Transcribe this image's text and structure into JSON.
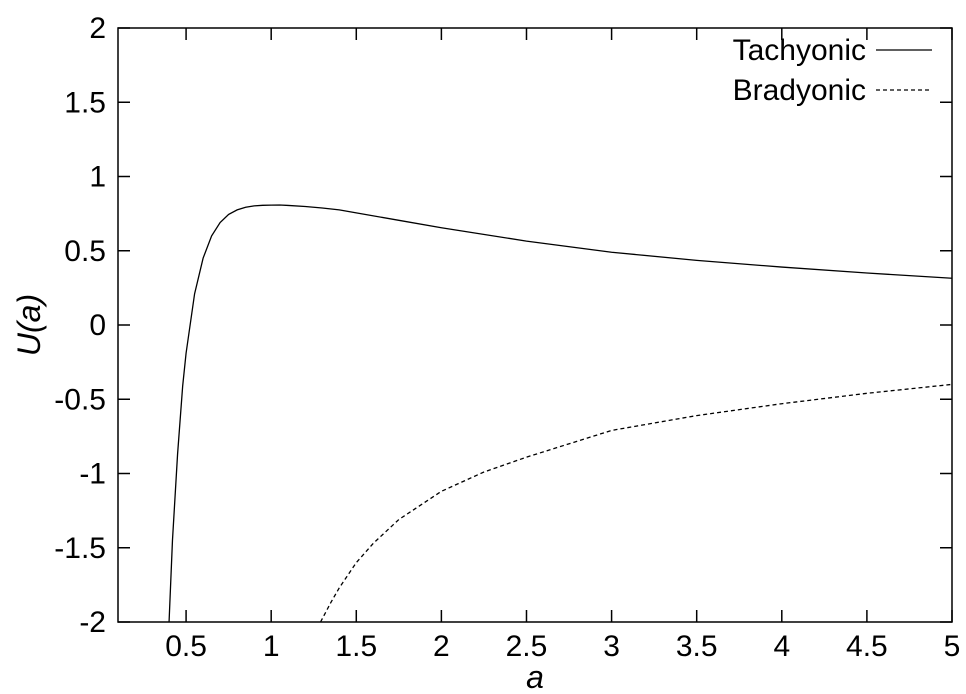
{
  "chart_data": {
    "type": "line",
    "xlabel": "a",
    "ylabel": "U(a)",
    "xlim": [
      0.1,
      5
    ],
    "ylim": [
      -2,
      2
    ],
    "xticks": [
      "0.5",
      "1",
      "1.5",
      "2",
      "2.5",
      "3",
      "3.5",
      "4",
      "4.5",
      "5"
    ],
    "yticks": [
      "2",
      "1.5",
      "1",
      "0.5",
      "0",
      "-0.5",
      "-1",
      "-1.5",
      "-2"
    ],
    "grid": false,
    "legend_position": "top-right",
    "series": [
      {
        "name": "Tachyonic",
        "style": "solid",
        "color": "#000000",
        "x": [
          0.4,
          0.42,
          0.45,
          0.48,
          0.5,
          0.55,
          0.6,
          0.65,
          0.7,
          0.75,
          0.8,
          0.85,
          0.9,
          0.95,
          1.0,
          1.05,
          1.1,
          1.2,
          1.3,
          1.4,
          1.5,
          1.75,
          2.0,
          2.5,
          3.0,
          3.5,
          4.0,
          4.5,
          5.0
        ],
        "y": [
          -2.0,
          -1.45,
          -0.87,
          -0.41,
          -0.19,
          0.21,
          0.45,
          0.6,
          0.69,
          0.745,
          0.775,
          0.793,
          0.802,
          0.806,
          0.807,
          0.808,
          0.805,
          0.798,
          0.788,
          0.775,
          0.755,
          0.705,
          0.655,
          0.565,
          0.49,
          0.435,
          0.39,
          0.35,
          0.315
        ]
      },
      {
        "name": "Bradyonic",
        "style": "dashed",
        "color": "#000000",
        "x": [
          1.29,
          1.35,
          1.4,
          1.5,
          1.6,
          1.75,
          2.0,
          2.25,
          2.5,
          3.0,
          3.5,
          4.0,
          4.5,
          5.0
        ],
        "y": [
          -2.0,
          -1.87,
          -1.77,
          -1.6,
          -1.47,
          -1.31,
          -1.12,
          -0.99,
          -0.89,
          -0.71,
          -0.61,
          -0.53,
          -0.46,
          -0.4
        ]
      }
    ]
  }
}
